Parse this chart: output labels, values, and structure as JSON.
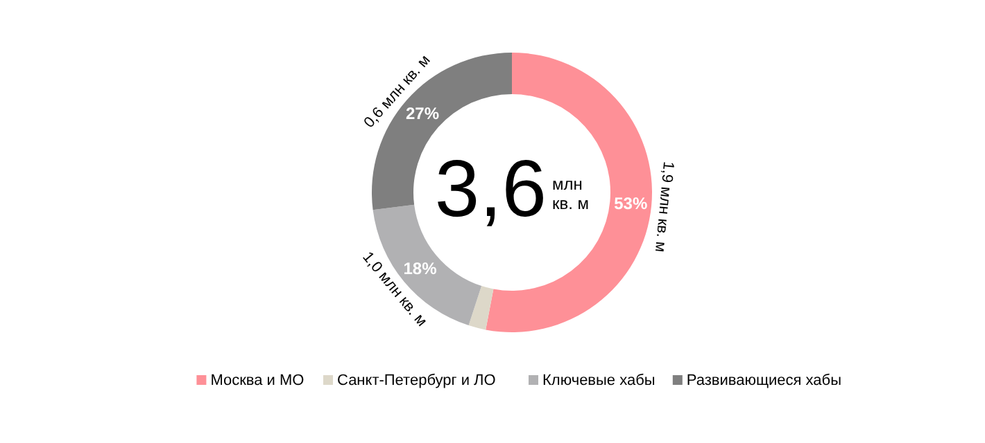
{
  "chart_data": {
    "type": "donut",
    "title": "3,6",
    "subtitle": "млн кв. м",
    "categories": [
      "Москва и МО",
      "Санкт-Петербург и ЛО",
      "Ключевые хабы",
      "Развивающиеся хабы"
    ],
    "values": [
      53,
      2,
      18,
      27
    ],
    "colors": [
      "#fe9097",
      "#ddd8c9",
      "#b1b1b3",
      "#7f7f7f"
    ],
    "value_labels": [
      "53%",
      null,
      "18%",
      "27%"
    ],
    "annotations": [
      {
        "text": "1,9 млн кв. м",
        "x": "Москва и МО"
      },
      {
        "text": "1,0 млн кв. м",
        "x": "Ключевые хабы"
      },
      {
        "text": "0,6 млн кв. м",
        "x": "Развивающиеся хабы"
      }
    ],
    "legend": "bottom"
  }
}
